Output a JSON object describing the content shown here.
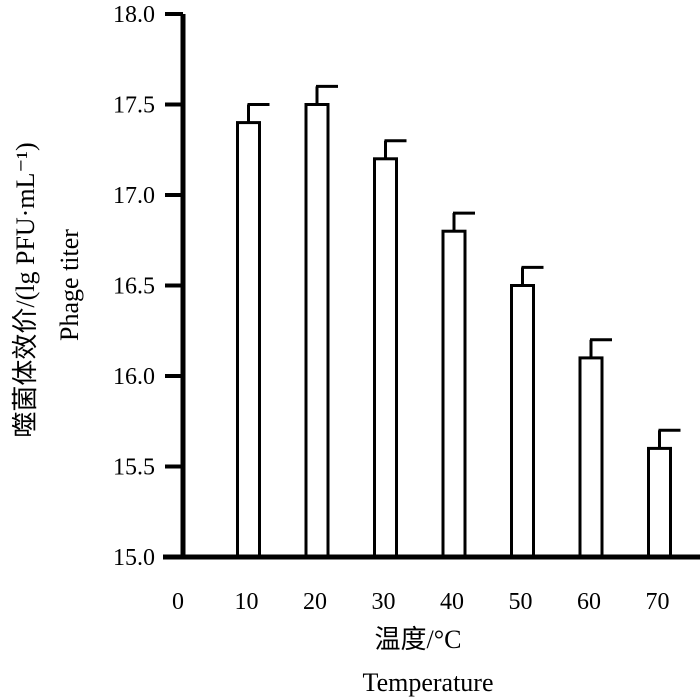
{
  "chart_data": {
    "type": "bar",
    "categories": [
      "10",
      "20",
      "30",
      "40",
      "50",
      "60",
      "70"
    ],
    "x_ticks": [
      "0",
      "10",
      "20",
      "30",
      "40",
      "50",
      "60",
      "70"
    ],
    "values": [
      17.4,
      17.5,
      17.2,
      16.8,
      16.5,
      16.1,
      15.6
    ],
    "errors": [
      0.1,
      0.1,
      0.1,
      0.1,
      0.1,
      0.1,
      0.1
    ],
    "ylim": [
      15.0,
      18.0
    ],
    "y_ticks": [
      "15.0",
      "15.5",
      "16.0",
      "16.5",
      "17.0",
      "17.5",
      "18.0"
    ],
    "xlabel": "温度/°C",
    "xlabel_en": "Temperature",
    "ylabel": "噬菌体效价/(lg PFU·mL⁻¹)",
    "ylabel_en": "Phage titer",
    "bar_color": "#ffffff",
    "edge_color": "#000000"
  }
}
